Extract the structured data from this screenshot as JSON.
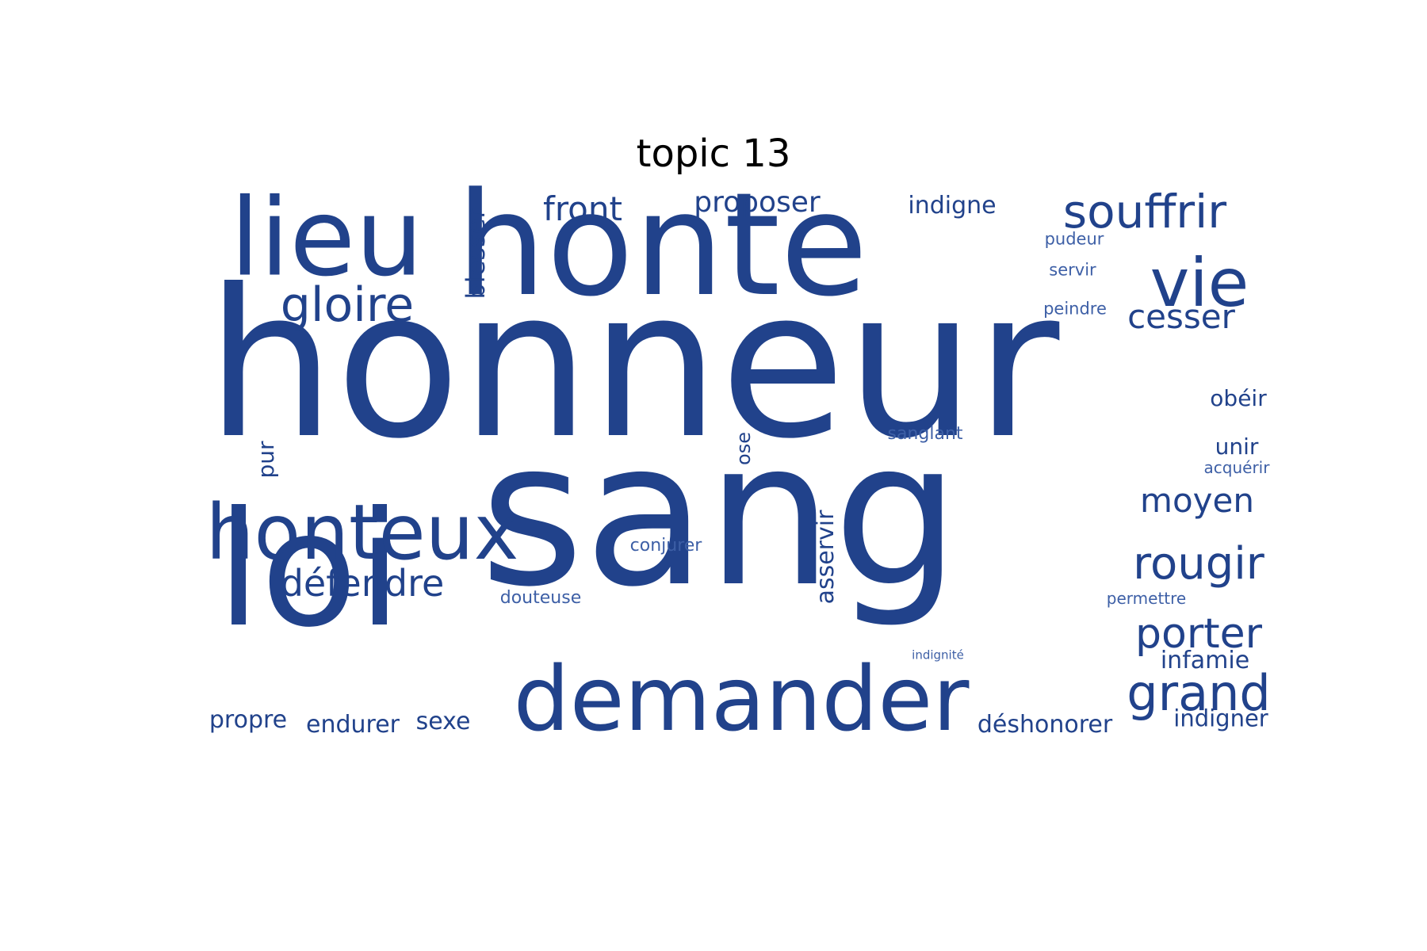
{
  "figure": {
    "title": "topic 13",
    "word_color": "#21428b"
  },
  "words": [
    {
      "text": "honneur"
    },
    {
      "text": "sang"
    },
    {
      "text": "honte"
    },
    {
      "text": "loi"
    },
    {
      "text": "lieu"
    },
    {
      "text": "demander"
    },
    {
      "text": "honteux"
    },
    {
      "text": "vie"
    },
    {
      "text": "souffrir"
    },
    {
      "text": "gloire"
    },
    {
      "text": "rougir"
    },
    {
      "text": "porter"
    },
    {
      "text": "grand"
    },
    {
      "text": "défendre"
    },
    {
      "text": "front"
    },
    {
      "text": "cesser"
    },
    {
      "text": "moyen"
    },
    {
      "text": "proposer"
    },
    {
      "text": "blesser"
    },
    {
      "text": "indigne"
    },
    {
      "text": "asservir"
    },
    {
      "text": "déshonorer"
    },
    {
      "text": "infamie"
    },
    {
      "text": "indigner"
    },
    {
      "text": "obéir"
    },
    {
      "text": "unir"
    },
    {
      "text": "propre"
    },
    {
      "text": "endurer"
    },
    {
      "text": "sexe"
    },
    {
      "text": "pur"
    },
    {
      "text": "ose"
    },
    {
      "text": "sanglant"
    },
    {
      "text": "conjurer"
    },
    {
      "text": "douteuse"
    },
    {
      "text": "permettre"
    },
    {
      "text": "acquérir"
    },
    {
      "text": "pudeur"
    },
    {
      "text": "servir"
    },
    {
      "text": "peindre"
    },
    {
      "text": "indignité"
    }
  ]
}
